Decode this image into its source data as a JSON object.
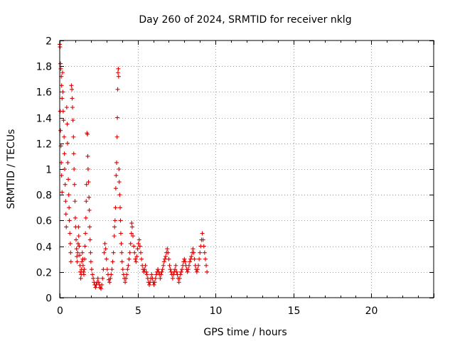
{
  "chart_data": {
    "type": "scatter",
    "title": "Day 260 of 2024, SRMTID for receiver nklg",
    "xlabel": "GPS time / hours",
    "ylabel": "SRMTID / TECUs",
    "xlim": [
      0,
      24
    ],
    "ylim": [
      0,
      2
    ],
    "xticks": [
      0,
      5,
      10,
      15,
      20
    ],
    "xtick_labels": [
      "0",
      "5",
      "10",
      "15",
      "20"
    ],
    "yticks": [
      0,
      0.2,
      0.4,
      0.6,
      0.8,
      1,
      1.2,
      1.4,
      1.6,
      1.8,
      2
    ],
    "ytick_labels": [
      "0",
      "0.2",
      "0.4",
      "0.6",
      "0.8",
      "1",
      "1.2",
      "1.4",
      "1.6",
      "1.8",
      "2"
    ],
    "grid": true,
    "marker": "+",
    "color": "#e00000",
    "series": [
      {
        "name": "SRMTID",
        "points": [
          [
            0.0,
            1.97
          ],
          [
            0.02,
            1.95
          ],
          [
            0.05,
            1.82
          ],
          [
            0.07,
            1.78
          ],
          [
            0.1,
            1.72
          ],
          [
            0.12,
            1.65
          ],
          [
            0.15,
            1.55
          ],
          [
            0.03,
            1.45
          ],
          [
            0.05,
            1.3
          ],
          [
            0.08,
            1.18
          ],
          [
            0.1,
            1.05
          ],
          [
            0.12,
            0.95
          ],
          [
            0.15,
            0.82
          ],
          [
            0.18,
            1.75
          ],
          [
            0.2,
            1.6
          ],
          [
            0.22,
            1.45
          ],
          [
            0.25,
            1.38
          ],
          [
            0.28,
            1.25
          ],
          [
            0.3,
            1.12
          ],
          [
            0.32,
            1.0
          ],
          [
            0.35,
            0.88
          ],
          [
            0.38,
            0.75
          ],
          [
            0.4,
            0.65
          ],
          [
            0.42,
            0.55
          ],
          [
            0.45,
            1.48
          ],
          [
            0.48,
            1.35
          ],
          [
            0.5,
            1.2
          ],
          [
            0.52,
            1.05
          ],
          [
            0.55,
            0.92
          ],
          [
            0.58,
            0.8
          ],
          [
            0.6,
            0.7
          ],
          [
            0.62,
            0.6
          ],
          [
            0.65,
            0.5
          ],
          [
            0.68,
            0.42
          ],
          [
            0.7,
            0.35
          ],
          [
            0.72,
            0.28
          ],
          [
            0.75,
            1.65
          ],
          [
            0.78,
            1.62
          ],
          [
            0.8,
            1.55
          ],
          [
            0.82,
            1.48
          ],
          [
            0.85,
            1.38
          ],
          [
            0.88,
            1.25
          ],
          [
            0.9,
            1.12
          ],
          [
            0.92,
            1.0
          ],
          [
            0.95,
            0.88
          ],
          [
            0.98,
            0.75
          ],
          [
            1.0,
            0.62
          ],
          [
            1.02,
            0.55
          ],
          [
            1.05,
            0.45
          ],
          [
            1.08,
            0.38
          ],
          [
            1.1,
            0.32
          ],
          [
            1.12,
            0.28
          ],
          [
            1.15,
            0.35
          ],
          [
            1.18,
            0.42
          ],
          [
            1.2,
            0.55
          ],
          [
            1.22,
            0.48
          ],
          [
            1.25,
            0.4
          ],
          [
            1.28,
            0.33
          ],
          [
            1.3,
            0.25
          ],
          [
            1.32,
            0.2
          ],
          [
            1.35,
            0.15
          ],
          [
            1.38,
            0.18
          ],
          [
            1.4,
            0.22
          ],
          [
            1.42,
            0.28
          ],
          [
            1.45,
            0.35
          ],
          [
            1.48,
            0.3
          ],
          [
            1.5,
            0.25
          ],
          [
            1.52,
            0.2
          ],
          [
            1.55,
            0.18
          ],
          [
            1.58,
            0.22
          ],
          [
            1.6,
            0.3
          ],
          [
            1.62,
            0.4
          ],
          [
            1.65,
            0.5
          ],
          [
            1.68,
            0.62
          ],
          [
            1.7,
            0.75
          ],
          [
            1.72,
            0.88
          ],
          [
            1.75,
            1.28
          ],
          [
            1.78,
            1.27
          ],
          [
            1.8,
            1.1
          ],
          [
            1.82,
            1.0
          ],
          [
            1.85,
            0.9
          ],
          [
            1.88,
            0.78
          ],
          [
            1.9,
            0.68
          ],
          [
            1.92,
            0.55
          ],
          [
            1.95,
            0.45
          ],
          [
            1.98,
            0.35
          ],
          [
            2.0,
            0.28
          ],
          [
            2.05,
            0.22
          ],
          [
            2.1,
            0.18
          ],
          [
            2.15,
            0.15
          ],
          [
            2.2,
            0.12
          ],
          [
            2.25,
            0.1
          ],
          [
            2.3,
            0.08
          ],
          [
            2.35,
            0.1
          ],
          [
            2.4,
            0.12
          ],
          [
            2.45,
            0.15
          ],
          [
            2.5,
            0.12
          ],
          [
            2.55,
            0.1
          ],
          [
            2.6,
            0.08
          ],
          [
            2.65,
            0.07
          ],
          [
            2.7,
            0.1
          ],
          [
            2.75,
            0.15
          ],
          [
            2.8,
            0.22
          ],
          [
            2.85,
            0.35
          ],
          [
            2.9,
            0.42
          ],
          [
            2.95,
            0.38
          ],
          [
            3.0,
            0.3
          ],
          [
            3.05,
            0.22
          ],
          [
            3.1,
            0.18
          ],
          [
            3.15,
            0.14
          ],
          [
            3.2,
            0.12
          ],
          [
            3.25,
            0.15
          ],
          [
            3.3,
            0.18
          ],
          [
            3.35,
            0.22
          ],
          [
            3.4,
            0.28
          ],
          [
            3.45,
            0.35
          ],
          [
            3.5,
            0.48
          ],
          [
            3.52,
            0.55
          ],
          [
            3.55,
            0.6
          ],
          [
            3.58,
            0.7
          ],
          [
            3.6,
            0.85
          ],
          [
            3.62,
            0.95
          ],
          [
            3.65,
            1.05
          ],
          [
            3.68,
            1.25
          ],
          [
            3.7,
            1.4
          ],
          [
            3.72,
            1.62
          ],
          [
            3.74,
            1.75
          ],
          [
            3.76,
            1.78
          ],
          [
            3.78,
            1.72
          ],
          [
            3.8,
            1.0
          ],
          [
            3.82,
            0.9
          ],
          [
            3.85,
            0.8
          ],
          [
            3.88,
            0.7
          ],
          [
            3.9,
            0.6
          ],
          [
            3.92,
            0.5
          ],
          [
            3.95,
            0.42
          ],
          [
            3.98,
            0.35
          ],
          [
            4.0,
            0.28
          ],
          [
            4.05,
            0.22
          ],
          [
            4.1,
            0.18
          ],
          [
            4.15,
            0.15
          ],
          [
            4.2,
            0.12
          ],
          [
            4.25,
            0.15
          ],
          [
            4.3,
            0.18
          ],
          [
            4.35,
            0.22
          ],
          [
            4.4,
            0.25
          ],
          [
            4.45,
            0.3
          ],
          [
            4.5,
            0.35
          ],
          [
            4.55,
            0.42
          ],
          [
            4.6,
            0.5
          ],
          [
            4.62,
            0.58
          ],
          [
            4.65,
            0.55
          ],
          [
            4.7,
            0.48
          ],
          [
            4.75,
            0.4
          ],
          [
            4.8,
            0.35
          ],
          [
            4.85,
            0.3
          ],
          [
            4.9,
            0.28
          ],
          [
            4.95,
            0.32
          ],
          [
            5.0,
            0.38
          ],
          [
            5.05,
            0.42
          ],
          [
            5.1,
            0.45
          ],
          [
            5.15,
            0.4
          ],
          [
            5.2,
            0.35
          ],
          [
            5.25,
            0.3
          ],
          [
            5.3,
            0.25
          ],
          [
            5.35,
            0.22
          ],
          [
            5.4,
            0.2
          ],
          [
            5.45,
            0.22
          ],
          [
            5.5,
            0.25
          ],
          [
            5.55,
            0.2
          ],
          [
            5.6,
            0.18
          ],
          [
            5.65,
            0.15
          ],
          [
            5.7,
            0.12
          ],
          [
            5.75,
            0.1
          ],
          [
            5.8,
            0.12
          ],
          [
            5.85,
            0.15
          ],
          [
            5.9,
            0.18
          ],
          [
            5.95,
            0.15
          ],
          [
            6.0,
            0.12
          ],
          [
            6.05,
            0.1
          ],
          [
            6.1,
            0.12
          ],
          [
            6.15,
            0.15
          ],
          [
            6.2,
            0.18
          ],
          [
            6.25,
            0.2
          ],
          [
            6.3,
            0.22
          ],
          [
            6.35,
            0.2
          ],
          [
            6.4,
            0.18
          ],
          [
            6.45,
            0.15
          ],
          [
            6.5,
            0.18
          ],
          [
            6.55,
            0.2
          ],
          [
            6.6,
            0.22
          ],
          [
            6.65,
            0.25
          ],
          [
            6.7,
            0.28
          ],
          [
            6.75,
            0.3
          ],
          [
            6.8,
            0.32
          ],
          [
            6.85,
            0.35
          ],
          [
            6.9,
            0.38
          ],
          [
            6.95,
            0.35
          ],
          [
            7.0,
            0.3
          ],
          [
            7.05,
            0.25
          ],
          [
            7.1,
            0.22
          ],
          [
            7.15,
            0.2
          ],
          [
            7.2,
            0.18
          ],
          [
            7.25,
            0.15
          ],
          [
            7.3,
            0.18
          ],
          [
            7.35,
            0.2
          ],
          [
            7.4,
            0.22
          ],
          [
            7.45,
            0.25
          ],
          [
            7.5,
            0.2
          ],
          [
            7.55,
            0.18
          ],
          [
            7.6,
            0.15
          ],
          [
            7.65,
            0.12
          ],
          [
            7.7,
            0.15
          ],
          [
            7.75,
            0.18
          ],
          [
            7.8,
            0.2
          ],
          [
            7.85,
            0.22
          ],
          [
            7.9,
            0.25
          ],
          [
            7.95,
            0.28
          ],
          [
            8.0,
            0.3
          ],
          [
            8.05,
            0.28
          ],
          [
            8.1,
            0.25
          ],
          [
            8.15,
            0.22
          ],
          [
            8.2,
            0.2
          ],
          [
            8.25,
            0.22
          ],
          [
            8.3,
            0.25
          ],
          [
            8.35,
            0.28
          ],
          [
            8.4,
            0.3
          ],
          [
            8.45,
            0.32
          ],
          [
            8.5,
            0.35
          ],
          [
            8.55,
            0.38
          ],
          [
            8.6,
            0.35
          ],
          [
            8.65,
            0.3
          ],
          [
            8.7,
            0.25
          ],
          [
            8.75,
            0.22
          ],
          [
            8.8,
            0.2
          ],
          [
            8.85,
            0.22
          ],
          [
            8.9,
            0.25
          ],
          [
            8.95,
            0.3
          ],
          [
            9.0,
            0.35
          ],
          [
            9.05,
            0.4
          ],
          [
            9.1,
            0.45
          ],
          [
            9.15,
            0.5
          ],
          [
            9.2,
            0.45
          ],
          [
            9.25,
            0.4
          ],
          [
            9.3,
            0.35
          ],
          [
            9.35,
            0.3
          ],
          [
            9.4,
            0.25
          ],
          [
            9.45,
            0.2
          ]
        ]
      }
    ]
  }
}
